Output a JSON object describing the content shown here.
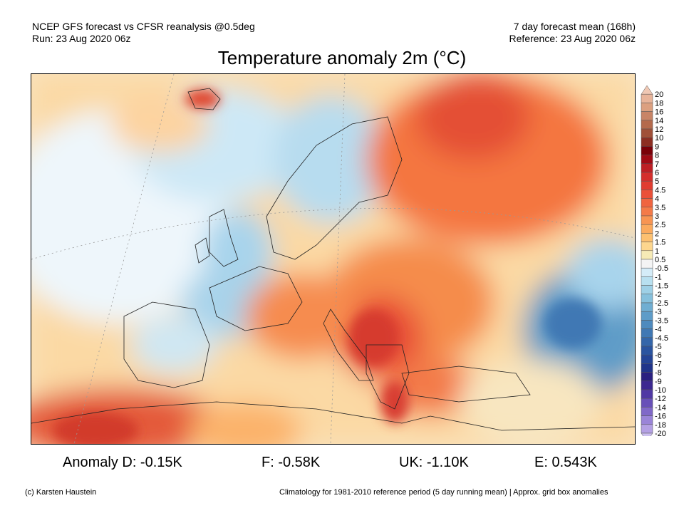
{
  "header": {
    "left_line1": "NCEP GFS forecast vs CFSR reanalysis @0.5deg",
    "left_line2": "Run: 23 Aug 2020 06z",
    "right_line1": "7 day forecast mean (168h)",
    "right_line2": "Reference: 23 Aug 2020 06z",
    "title": "Temperature anomaly 2m (°C)"
  },
  "colorbar": {
    "labels": [
      "20",
      "18",
      "16",
      "14",
      "12",
      "10",
      "9",
      "8",
      "7",
      "6",
      "5",
      "4.5",
      "4",
      "3.5",
      "3",
      "2.5",
      "2",
      "1.5",
      "1",
      "0.5",
      "-0.5",
      "-1",
      "-1.5",
      "-2",
      "-2.5",
      "-3",
      "-3.5",
      "-4",
      "-4.5",
      "-5",
      "-6",
      "-7",
      "-8",
      "-9",
      "-10",
      "-12",
      "-14",
      "-16",
      "-18",
      "-20"
    ],
    "colors": [
      "#f0c8b4",
      "#e8b49a",
      "#dca080",
      "#c88466",
      "#b46a4c",
      "#a05038",
      "#8c2e22",
      "#7a0008",
      "#a00a14",
      "#be1e24",
      "#d42e2c",
      "#e03c30",
      "#ea5038",
      "#f06440",
      "#f47a48",
      "#f89452",
      "#fbaa5e",
      "#fdc070",
      "#fdd68e",
      "#f6eab6",
      "#f4f4f4",
      "#d4ecf8",
      "#b8e0f0",
      "#9ed0e6",
      "#86c0dc",
      "#70aed2",
      "#5e9cc8",
      "#4e8abe",
      "#4078b4",
      "#3466aa",
      "#2a54a0",
      "#244496",
      "#20348a",
      "#2a2080",
      "#3c2890",
      "#5038a4",
      "#6850b8",
      "#8068c8",
      "#9a84d8",
      "#b4a0e4",
      "#ccc0f0"
    ]
  },
  "anomalies": {
    "d": "Anomaly D: -0.15K",
    "f": "F: -0.58K",
    "uk": "UK: -1.10K",
    "e": "E: 0.543K"
  },
  "footer": {
    "credit": "(c) Karsten Haustein",
    "note": "Climatology for 1981-2010 reference period (5 day running mean) | Approx. grid box anomalies"
  }
}
